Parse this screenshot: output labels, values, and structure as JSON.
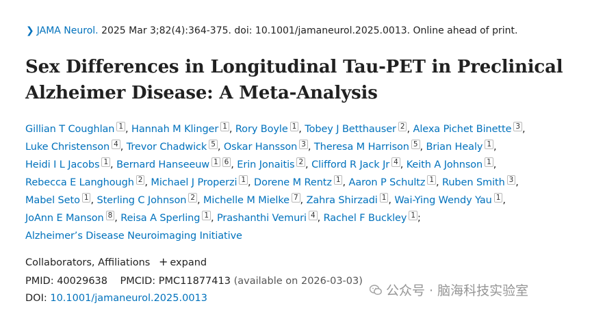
{
  "citation": {
    "journal": "JAMA Neurol.",
    "details": "2025 Mar 3;82(4):364-375. doi: 10.1001/jamaneurol.2025.0013. Online ahead of print."
  },
  "title": "Sex Differences in Longitudinal Tau-PET in Preclinical Alzheimer Disease: A Meta-Analysis",
  "authors": [
    {
      "name": "Gillian T Coughlan",
      "affil": [
        "1"
      ]
    },
    {
      "name": "Hannah M Klinger",
      "affil": [
        "1"
      ]
    },
    {
      "name": "Rory Boyle",
      "affil": [
        "1"
      ]
    },
    {
      "name": "Tobey J Betthauser",
      "affil": [
        "2"
      ]
    },
    {
      "name": "Alexa Pichet Binette",
      "affil": [
        "3"
      ]
    },
    {
      "name": "Luke Christenson",
      "affil": [
        "4"
      ]
    },
    {
      "name": "Trevor Chadwick",
      "affil": [
        "5"
      ]
    },
    {
      "name": "Oskar Hansson",
      "affil": [
        "3"
      ]
    },
    {
      "name": "Theresa M Harrison",
      "affil": [
        "5"
      ]
    },
    {
      "name": "Brian Healy",
      "affil": [
        "1"
      ]
    },
    {
      "name": "Heidi I L Jacobs",
      "affil": [
        "1"
      ]
    },
    {
      "name": "Bernard Hanseeuw",
      "affil": [
        "1",
        "6"
      ]
    },
    {
      "name": "Erin Jonaitis",
      "affil": [
        "2"
      ]
    },
    {
      "name": "Clifford R Jack Jr",
      "affil": [
        "4"
      ]
    },
    {
      "name": "Keith A Johnson",
      "affil": [
        "1"
      ]
    },
    {
      "name": "Rebecca E Langhough",
      "affil": [
        "2"
      ]
    },
    {
      "name": "Michael J Properzi",
      "affil": [
        "1"
      ]
    },
    {
      "name": "Dorene M Rentz",
      "affil": [
        "1"
      ]
    },
    {
      "name": "Aaron P Schultz",
      "affil": [
        "1"
      ]
    },
    {
      "name": "Ruben Smith",
      "affil": [
        "3"
      ]
    },
    {
      "name": "Mabel Seto",
      "affil": [
        "1"
      ]
    },
    {
      "name": "Sterling C Johnson",
      "affil": [
        "2"
      ]
    },
    {
      "name": "Michelle M Mielke",
      "affil": [
        "7"
      ]
    },
    {
      "name": "Zahra Shirzadi",
      "affil": [
        "1"
      ]
    },
    {
      "name": "Wai-Ying Wendy Yau",
      "affil": [
        "1"
      ]
    },
    {
      "name": "JoAnn E Manson",
      "affil": [
        "8"
      ]
    },
    {
      "name": "Reisa A Sperling",
      "affil": [
        "1"
      ]
    },
    {
      "name": "Prashanthi Vemuri",
      "affil": [
        "4"
      ]
    },
    {
      "name": "Rachel F Buckley",
      "affil": [
        "1"
      ]
    }
  ],
  "group_author": "Alzheimer’s Disease Neuroimaging Initiative",
  "collab": {
    "label": "Collaborators, Affiliations",
    "expand_label": "expand"
  },
  "ids": {
    "pmid_label": "PMID:",
    "pmid": "40029638",
    "pmcid_label": "PMCID:",
    "pmcid": "PMC11877413",
    "availability": "(available on 2026-03-03)",
    "doi_label": "DOI:",
    "doi": "10.1001/jamaneurol.2025.0013"
  },
  "watermark": "公众号 · 脑海科技实验室",
  "colors": {
    "link": "#0071bc",
    "text": "#212121"
  }
}
